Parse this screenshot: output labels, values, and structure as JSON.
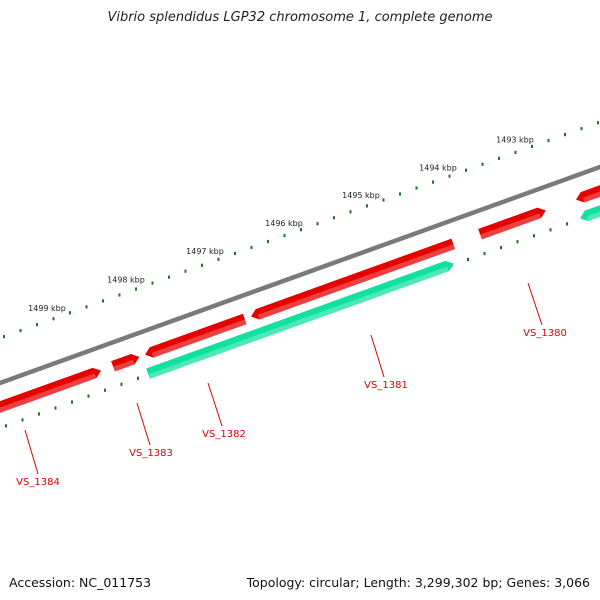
{
  "title": "Vibrio splendidus LGP32 chromosome 1, complete genome",
  "footer": {
    "accession": "Accession: NC_011753",
    "summary": "Topology: circular; Length: 3,299,302 bp; Genes: 3,066"
  },
  "colors": {
    "backbone": "#7a7a7a",
    "forward_gene": "#e60000",
    "reverse_gene": "#10e0a0",
    "tick": "#1a7a1a",
    "gene_label": "#e00000"
  },
  "ruler": {
    "unit": "kbp",
    "labels": [
      {
        "text": "1499 kbp",
        "pos": 1499
      },
      {
        "text": "1498 kbp",
        "pos": 1498
      },
      {
        "text": "1497 kbp",
        "pos": 1497
      },
      {
        "text": "1496 kbp",
        "pos": 1496
      },
      {
        "text": "1495 kbp",
        "pos": 1495
      },
      {
        "text": "1494 kbp",
        "pos": 1494
      },
      {
        "text": "1493 kbp",
        "pos": 1493
      }
    ]
  },
  "genes": [
    {
      "name": "VS_1384",
      "strand": "+"
    },
    {
      "name": "VS_1383",
      "strand": "+"
    },
    {
      "name": "VS_1382",
      "strand": "-"
    },
    {
      "name": "VS_1381",
      "strand": "+"
    },
    {
      "name": "VS_1380",
      "strand": "+"
    }
  ]
}
